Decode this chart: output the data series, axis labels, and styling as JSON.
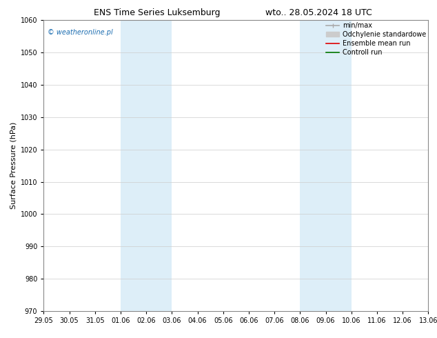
{
  "title_left": "ENS Time Series Luksemburg",
  "title_right": "wto.. 28.05.2024 18 UTC",
  "ylabel": "Surface Pressure (hPa)",
  "ylim": [
    970,
    1060
  ],
  "yticks": [
    970,
    980,
    990,
    1000,
    1010,
    1020,
    1030,
    1040,
    1050,
    1060
  ],
  "x_labels": [
    "29.05",
    "30.05",
    "31.05",
    "01.06",
    "02.06",
    "03.06",
    "04.06",
    "05.06",
    "06.06",
    "07.06",
    "08.06",
    "09.06",
    "10.06",
    "11.06",
    "12.06",
    "13.06"
  ],
  "x_positions": [
    0,
    1,
    2,
    3,
    4,
    5,
    6,
    7,
    8,
    9,
    10,
    11,
    12,
    13,
    14,
    15
  ],
  "xlim": [
    0,
    15
  ],
  "shaded_bands": [
    {
      "xmin": 3,
      "xmax": 5
    },
    {
      "xmin": 10,
      "xmax": 12
    }
  ],
  "shade_color": "#ddeef8",
  "watermark": "© weatheronline.pl",
  "watermark_color": "#1a6cb0",
  "legend_items": [
    {
      "label": "min/max",
      "color": "#aaaaaa",
      "lw": 1.2,
      "type": "line_caps"
    },
    {
      "label": "Odchylenie standardowe",
      "color": "#cccccc",
      "lw": 6,
      "type": "box"
    },
    {
      "label": "Ensemble mean run",
      "color": "#dd0000",
      "lw": 1.2,
      "type": "line"
    },
    {
      "label": "Controll run",
      "color": "#007700",
      "lw": 1.2,
      "type": "line"
    }
  ],
  "bg_color": "#ffffff",
  "spine_color": "#888888",
  "grid_color": "#cccccc",
  "title_fontsize": 9,
  "ylabel_fontsize": 8,
  "tick_fontsize": 7,
  "legend_fontsize": 7,
  "watermark_fontsize": 7
}
